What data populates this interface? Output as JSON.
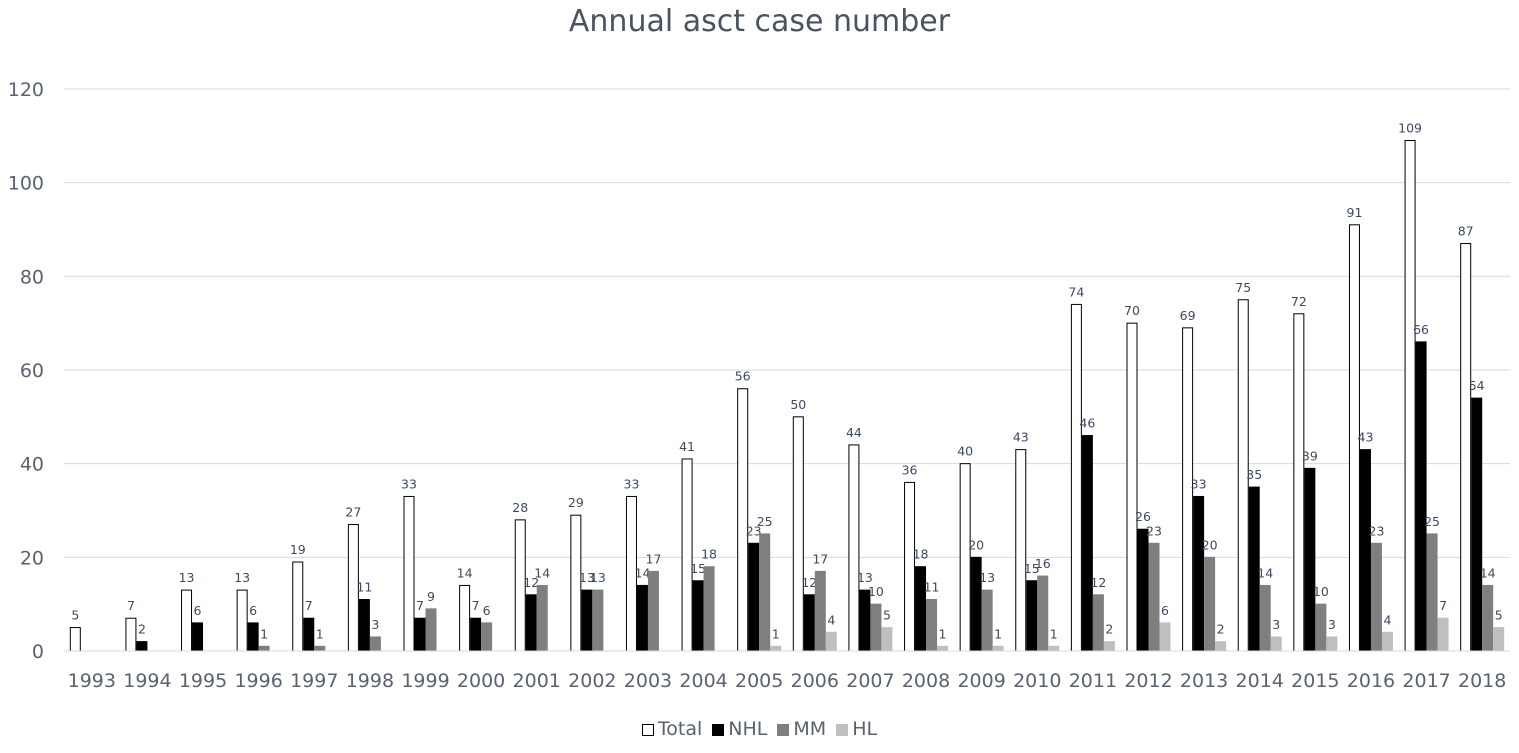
{
  "chart_data": {
    "type": "bar",
    "title": "Annual asct case number",
    "xlabel": "",
    "ylabel": "",
    "ylim": [
      0,
      120
    ],
    "yticks": [
      0,
      20,
      40,
      60,
      80,
      100,
      120
    ],
    "grid": true,
    "legend_position": "bottom",
    "categories": [
      "1993",
      "1994",
      "1995",
      "1996",
      "1997",
      "1998",
      "1999",
      "2000",
      "2001",
      "2002",
      "2003",
      "2004",
      "2005",
      "2006",
      "2007",
      "2008",
      "2009",
      "2010",
      "2011",
      "2012",
      "2013",
      "2014",
      "2015",
      "2016",
      "2017",
      "2018"
    ],
    "series": [
      {
        "name": "Total",
        "color": "#ffffff",
        "stroke": "#000000",
        "values": [
          5,
          7,
          13,
          13,
          19,
          27,
          33,
          14,
          28,
          29,
          33,
          41,
          56,
          50,
          44,
          36,
          40,
          43,
          74,
          70,
          69,
          75,
          72,
          91,
          109,
          87
        ]
      },
      {
        "name": "NHL",
        "color": "#000000",
        "stroke": "#000000",
        "values": [
          null,
          2,
          6,
          6,
          7,
          11,
          7,
          7,
          12,
          13,
          14,
          15,
          23,
          12,
          13,
          18,
          20,
          15,
          46,
          26,
          33,
          35,
          39,
          43,
          66,
          54
        ]
      },
      {
        "name": "MM",
        "color": "#7f7f7f",
        "stroke": "#7f7f7f",
        "values": [
          null,
          null,
          null,
          1,
          1,
          3,
          9,
          6,
          14,
          13,
          17,
          18,
          25,
          17,
          10,
          11,
          13,
          16,
          12,
          23,
          20,
          14,
          10,
          23,
          25,
          14
        ]
      },
      {
        "name": "HL",
        "color": "#bfbfbf",
        "stroke": "#bfbfbf",
        "values": [
          null,
          null,
          null,
          null,
          null,
          null,
          null,
          null,
          null,
          null,
          null,
          null,
          1,
          4,
          5,
          1,
          1,
          1,
          2,
          6,
          2,
          3,
          3,
          4,
          7,
          5
        ]
      }
    ]
  }
}
